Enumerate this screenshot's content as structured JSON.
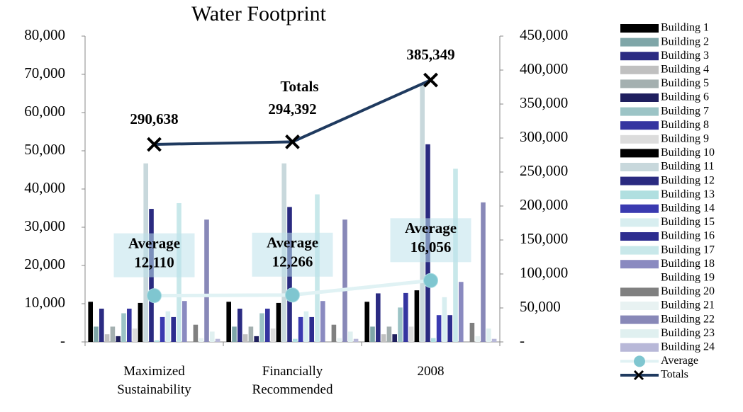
{
  "chart_data": {
    "type": "bar-line-combo",
    "title": "Water Footprint",
    "categories": [
      "Maximized Sustainability",
      "Financially Recommended",
      "2008"
    ],
    "ylim": [
      0,
      80000
    ],
    "yticks": [
      {
        "value": 0,
        "label": "-"
      },
      {
        "value": 10000,
        "label": "10,000"
      },
      {
        "value": 20000,
        "label": "20,000"
      },
      {
        "value": 30000,
        "label": "30,000"
      },
      {
        "value": 40000,
        "label": "40,000"
      },
      {
        "value": 50000,
        "label": "50,000"
      },
      {
        "value": 60000,
        "label": "60,000"
      },
      {
        "value": 70000,
        "label": "70,000"
      },
      {
        "value": 80000,
        "label": "80,000"
      }
    ],
    "y2lim": [
      0,
      450000
    ],
    "y2ticks": [
      {
        "value": 0,
        "label": "-"
      },
      {
        "value": 50000,
        "label": "50,000"
      },
      {
        "value": 100000,
        "label": "100,000"
      },
      {
        "value": 150000,
        "label": "150,000"
      },
      {
        "value": 200000,
        "label": "200,000"
      },
      {
        "value": 250000,
        "label": "250,000"
      },
      {
        "value": 300000,
        "label": "300,000"
      },
      {
        "value": 350000,
        "label": "350,000"
      },
      {
        "value": 400000,
        "label": "400,000"
      },
      {
        "value": 450000,
        "label": "450,000"
      }
    ],
    "legend": "right",
    "series": [
      {
        "name": "Building 1",
        "type": "bar",
        "color": "#000000",
        "values": [
          10500,
          10500,
          10500
        ]
      },
      {
        "name": "Building 2",
        "type": "bar",
        "color": "#7fa6a8",
        "values": [
          4000,
          4000,
          4000
        ]
      },
      {
        "name": "Building 3",
        "type": "bar",
        "color": "#2b2b82",
        "values": [
          8700,
          8700,
          12700
        ]
      },
      {
        "name": "Building 4",
        "type": "bar",
        "color": "#c0c0c0",
        "values": [
          2000,
          2000,
          2000
        ]
      },
      {
        "name": "Building 5",
        "type": "bar",
        "color": "#a4b0b0",
        "values": [
          4000,
          4000,
          4000
        ]
      },
      {
        "name": "Building 6",
        "type": "bar",
        "color": "#1f1f5e",
        "values": [
          1500,
          1500,
          2000
        ]
      },
      {
        "name": "Building 7",
        "type": "bar",
        "color": "#9cc4c6",
        "values": [
          7500,
          7500,
          9000
        ]
      },
      {
        "name": "Building 8",
        "type": "bar",
        "color": "#3535a0",
        "values": [
          8700,
          8700,
          12800
        ]
      },
      {
        "name": "Building 9",
        "type": "bar",
        "color": "#dcdcdc",
        "values": [
          3500,
          3500,
          4000
        ]
      },
      {
        "name": "Building 10",
        "type": "bar",
        "color": "#000000",
        "values": [
          10200,
          10200,
          13500
        ]
      },
      {
        "name": "Building 11",
        "type": "bar",
        "color": "#c8d8dc",
        "values": [
          46700,
          46700,
          67800
        ]
      },
      {
        "name": "Building 12",
        "type": "bar",
        "color": "#2a2a80",
        "values": [
          34800,
          35300,
          51700
        ]
      },
      {
        "name": "Building 13",
        "type": "bar",
        "color": "#b0dfe0",
        "values": [
          400,
          800,
          1000
        ]
      },
      {
        "name": "Building 14",
        "type": "bar",
        "color": "#3a3ab0",
        "values": [
          6500,
          6500,
          7000
        ]
      },
      {
        "name": "Building 15",
        "type": "bar",
        "color": "#d8eef0",
        "values": [
          8000,
          8000,
          11700
        ]
      },
      {
        "name": "Building 16",
        "type": "bar",
        "color": "#2d2d8f",
        "values": [
          6500,
          6500,
          7000
        ]
      },
      {
        "name": "Building 17",
        "type": "bar",
        "color": "#c8e8ea",
        "values": [
          36300,
          38600,
          45300
        ]
      },
      {
        "name": "Building 18",
        "type": "bar",
        "color": "#8a8ac0",
        "values": [
          10700,
          10700,
          15700
        ]
      },
      {
        "name": "Building 19",
        "type": "bar",
        "color": "#ffffff",
        "values": [
          0,
          0,
          0
        ]
      },
      {
        "name": "Building 20",
        "type": "bar",
        "color": "#808080",
        "values": [
          4500,
          4500,
          5000
        ]
      },
      {
        "name": "Building 21",
        "type": "bar",
        "color": "#e8f2f2",
        "values": [
          1000,
          1000,
          1500
        ]
      },
      {
        "name": "Building 22",
        "type": "bar",
        "color": "#8888b8",
        "values": [
          32000,
          32000,
          36500
        ]
      },
      {
        "name": "Building 23",
        "type": "bar",
        "color": "#e0f0f0",
        "values": [
          2700,
          2700,
          3500
        ]
      },
      {
        "name": "Building 24",
        "type": "bar",
        "color": "#b8b8d8",
        "values": [
          800,
          800,
          800
        ]
      },
      {
        "name": "Average",
        "type": "line",
        "color": "#e0f2f4",
        "marker_color": "#7fc6d0",
        "values": [
          12110,
          12266,
          16056
        ],
        "value_labels": [
          "12,110",
          "12,266",
          "16,056"
        ]
      },
      {
        "name": "Totals",
        "type": "line",
        "axis": "y2",
        "color": "#1f3a5f",
        "marker_color": "#000000",
        "values": [
          290638,
          294392,
          385349
        ],
        "value_labels": [
          "290,638",
          "294,392",
          "385,349"
        ]
      }
    ]
  }
}
